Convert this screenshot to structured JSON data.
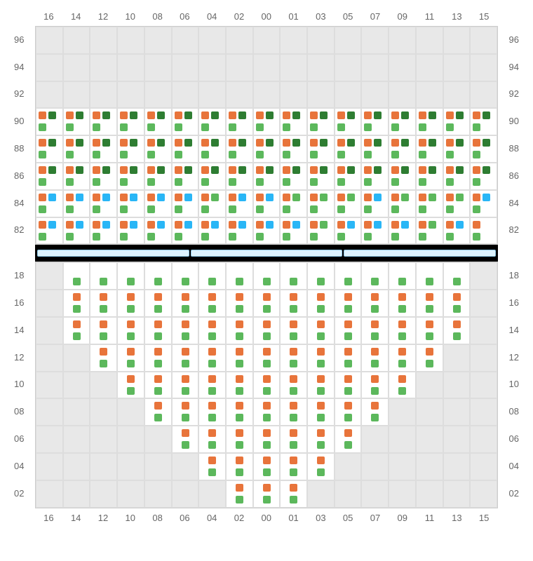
{
  "columns": [
    "16",
    "14",
    "12",
    "10",
    "08",
    "06",
    "04",
    "02",
    "00",
    "01",
    "03",
    "05",
    "07",
    "09",
    "11",
    "13",
    "15"
  ],
  "colors": {
    "orange": "#e8743b",
    "green": "#5cb85c",
    "darkgreen": "#2e7d32",
    "blue": "#29b6f6",
    "empty_bg": "#e8e8e8",
    "filled_bg": "#ffffff",
    "grid_border": "#dddddd",
    "label": "#666666"
  },
  "top": {
    "rows": [
      "96",
      "94",
      "92",
      "90",
      "88",
      "86",
      "84",
      "82"
    ],
    "cells": [
      [
        "e",
        "e",
        "e",
        "e",
        "e",
        "e",
        "e",
        "e",
        "e",
        "e",
        "e",
        "e",
        "e",
        "e",
        "e",
        "e",
        "e"
      ],
      [
        "e",
        "e",
        "e",
        "e",
        "e",
        "e",
        "e",
        "e",
        "e",
        "e",
        "e",
        "e",
        "e",
        "e",
        "e",
        "e",
        "e"
      ],
      [
        "e",
        "e",
        "e",
        "e",
        "e",
        "e",
        "e",
        "e",
        "e",
        "e",
        "e",
        "e",
        "e",
        "e",
        "e",
        "e",
        "e"
      ],
      [
        "ODG",
        "ODG",
        "ODG",
        "ODG",
        "ODG",
        "ODG",
        "ODG",
        "ODG",
        "ODG",
        "ODG",
        "ODG",
        "ODG",
        "ODG",
        "ODG",
        "ODG",
        "ODG",
        "ODG"
      ],
      [
        "ODG",
        "ODG",
        "ODG",
        "ODG",
        "ODG",
        "ODG",
        "ODG",
        "ODG",
        "ODG",
        "ODG",
        "ODG",
        "ODG",
        "ODG",
        "ODG",
        "ODG",
        "ODG",
        "ODG"
      ],
      [
        "ODG",
        "ODG",
        "ODG",
        "ODG",
        "ODG",
        "ODG",
        "ODG",
        "ODG",
        "ODG",
        "ODG",
        "ODG",
        "ODG",
        "ODG",
        "ODG",
        "ODG",
        "ODG",
        "ODG"
      ],
      [
        "OBG",
        "OBG",
        "OBG",
        "OBG",
        "OBG",
        "OBG",
        "OGG",
        "OBG",
        "OBG",
        "OGG",
        "OGG",
        "OGG",
        "OBG",
        "OGG",
        "OGG",
        "OGG",
        "OBG"
      ],
      [
        "OBG",
        "OBG",
        "OBG",
        "OBG",
        "OBG",
        "OBG",
        "OBG",
        "OBG",
        "OBG",
        "OBG",
        "OGG",
        "OBG",
        "OBG",
        "OBG",
        "OGG",
        "OBG",
        "O_G"
      ]
    ]
  },
  "bottom": {
    "rows": [
      "18",
      "16",
      "14",
      "12",
      "10",
      "08",
      "06",
      "04",
      "02"
    ],
    "cells": [
      [
        "e",
        "_G",
        "_G",
        "_G",
        "_G",
        "_G",
        "_G",
        "_G",
        "_G",
        "_G",
        "_G",
        "_G",
        "_G",
        "_G",
        "_G",
        "_G",
        "e"
      ],
      [
        "e",
        "OG",
        "OG",
        "OG",
        "OG",
        "OG",
        "OG",
        "OG",
        "OG",
        "OG",
        "OG",
        "OG",
        "OG",
        "OG",
        "OG",
        "OG",
        "e"
      ],
      [
        "e",
        "OG",
        "OG",
        "OG",
        "OG",
        "OG",
        "OG",
        "OG",
        "OG",
        "OG",
        "OG",
        "OG",
        "OG",
        "OG",
        "OG",
        "OG",
        "e"
      ],
      [
        "e",
        "e",
        "OG",
        "OG",
        "OG",
        "OG",
        "OG",
        "OG",
        "OG",
        "OG",
        "OG",
        "OG",
        "OG",
        "OG",
        "OG",
        "e",
        "e"
      ],
      [
        "e",
        "e",
        "e",
        "OG",
        "OG",
        "OG",
        "OG",
        "OG",
        "OG",
        "OG",
        "OG",
        "OG",
        "OG",
        "OG",
        "e",
        "e",
        "e"
      ],
      [
        "e",
        "e",
        "e",
        "e",
        "OG",
        "OG",
        "OG",
        "OG",
        "OG",
        "OG",
        "OG",
        "OG",
        "OG",
        "e",
        "e",
        "e",
        "e"
      ],
      [
        "e",
        "e",
        "e",
        "e",
        "e",
        "OG",
        "OG",
        "OG",
        "OG",
        "OG",
        "OG",
        "OG",
        "e",
        "e",
        "e",
        "e",
        "e"
      ],
      [
        "e",
        "e",
        "e",
        "e",
        "e",
        "e",
        "OG",
        "OG",
        "OG",
        "OG",
        "OG",
        "e",
        "e",
        "e",
        "e",
        "e",
        "e"
      ],
      [
        "e",
        "e",
        "e",
        "e",
        "e",
        "e",
        "e",
        "OG",
        "OG",
        "OG",
        "e",
        "e",
        "e",
        "e",
        "e",
        "e",
        "e"
      ]
    ]
  },
  "divider_segments": 3
}
